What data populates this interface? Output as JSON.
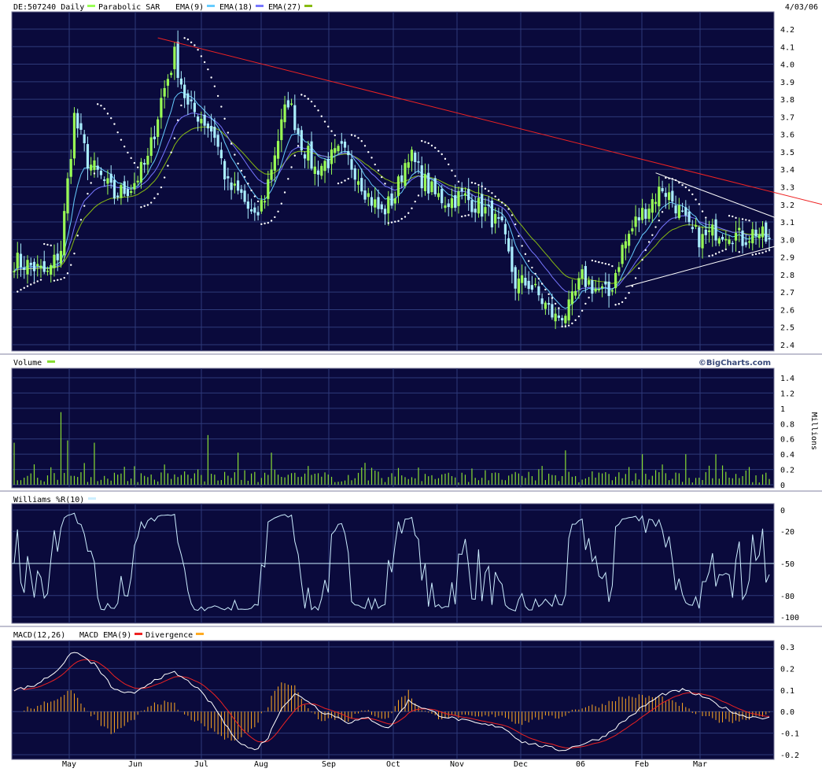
{
  "header": {
    "symbol": "DE:507240",
    "period": "Daily",
    "date": "4/03/06",
    "legend": [
      {
        "label": "Parabolic SAR",
        "color": "#ffffff"
      },
      {
        "label": "EMA(9)",
        "color": "#66ccff"
      },
      {
        "label": "EMA(18)",
        "color": "#7777ff"
      },
      {
        "label": "EMA(27)",
        "color": "#88bb11"
      }
    ],
    "watermark": "©BigCharts.com"
  },
  "colors": {
    "panel_bg": "#0a0a3c",
    "grid": "#2e3a7a",
    "up_bar": "#99ff55",
    "down_bar": "#aaeeff",
    "sar": "#ffffff",
    "ema9": "#66ccff",
    "ema18": "#7777ff",
    "ema27": "#88bb11",
    "trendline_red": "#ee2222",
    "triangle": "#ffffff",
    "volume": "#88dd33",
    "williams": "#cceeff",
    "macd": "#ffffff",
    "macd_signal": "#ee2222",
    "divergence": "#ffaa22"
  },
  "x_axis": {
    "labels": [
      "May",
      "Jun",
      "Jul",
      "Aug",
      "Sep",
      "Oct",
      "Nov",
      "Dec",
      "06",
      "Feb",
      "Mar"
    ]
  },
  "chart_data": [
    {
      "type": "candlestick",
      "title": "DE:507240 Daily",
      "ylim": [
        2.4,
        4.2
      ],
      "yticks": [
        "4.2",
        "4.1",
        "4.0",
        "3.9",
        "3.8",
        "3.7",
        "3.6",
        "3.5",
        "3.4",
        "3.3",
        "3.2",
        "3.1",
        "3.0",
        "2.9",
        "2.8",
        "2.7",
        "2.6",
        "2.5",
        "2.4"
      ],
      "grid": true,
      "anchor_closes": [
        [
          0,
          2.88
        ],
        [
          5,
          2.85
        ],
        [
          10,
          2.8
        ],
        [
          14,
          2.95
        ],
        [
          18,
          3.7
        ],
        [
          22,
          3.45
        ],
        [
          26,
          3.35
        ],
        [
          30,
          3.25
        ],
        [
          35,
          3.3
        ],
        [
          40,
          3.45
        ],
        [
          44,
          3.8
        ],
        [
          48,
          4.05
        ],
        [
          52,
          3.75
        ],
        [
          56,
          3.7
        ],
        [
          60,
          3.6
        ],
        [
          64,
          3.3
        ],
        [
          68,
          3.25
        ],
        [
          72,
          3.1
        ],
        [
          75,
          3.25
        ],
        [
          78,
          3.5
        ],
        [
          82,
          3.8
        ],
        [
          86,
          3.55
        ],
        [
          90,
          3.4
        ],
        [
          94,
          3.45
        ],
        [
          98,
          3.5
        ],
        [
          102,
          3.4
        ],
        [
          106,
          3.25
        ],
        [
          110,
          3.15
        ],
        [
          114,
          3.25
        ],
        [
          118,
          3.5
        ],
        [
          122,
          3.35
        ],
        [
          126,
          3.25
        ],
        [
          130,
          3.22
        ],
        [
          134,
          3.25
        ],
        [
          138,
          3.2
        ],
        [
          142,
          3.15
        ],
        [
          146,
          3.05
        ],
        [
          150,
          2.75
        ],
        [
          154,
          2.75
        ],
        [
          158,
          2.65
        ],
        [
          162,
          2.55
        ],
        [
          166,
          2.6
        ],
        [
          170,
          2.78
        ],
        [
          174,
          2.72
        ],
        [
          178,
          2.68
        ],
        [
          182,
          2.95
        ],
        [
          186,
          3.1
        ],
        [
          190,
          3.2
        ],
        [
          194,
          3.3
        ],
        [
          198,
          3.2
        ],
        [
          202,
          3.05
        ],
        [
          206,
          3.0
        ],
        [
          210,
          3.05
        ],
        [
          214,
          3.05
        ],
        [
          218,
          3.0
        ],
        [
          222,
          3.05
        ],
        [
          226,
          2.98
        ]
      ],
      "parabolic_sar_points": 227,
      "trendlines": [
        {
          "name": "resistance",
          "from": [
            "Jun",
            4.15
          ],
          "to": [
            "right edge",
            3.2
          ]
        },
        {
          "name": "triangle upper",
          "from": [
            "Feb",
            3.38
          ],
          "to": [
            "apex",
            3.03
          ]
        },
        {
          "name": "triangle lower",
          "from": [
            "Feb",
            2.73
          ],
          "to": [
            "apex",
            3.03
          ]
        }
      ]
    },
    {
      "type": "bar",
      "title": "Volume",
      "ylabel": "Millions",
      "ylim": [
        0,
        1.4
      ],
      "yticks": [
        "1.4",
        "1.2",
        "1",
        "0.8",
        "0.6",
        "0.4",
        "0.2",
        "0"
      ],
      "spikes": [
        [
          0,
          0.55
        ],
        [
          14,
          0.95
        ],
        [
          16,
          0.58
        ],
        [
          24,
          0.55
        ],
        [
          58,
          0.65
        ],
        [
          67,
          0.42
        ],
        [
          77,
          0.42
        ],
        [
          165,
          0.45
        ],
        [
          188,
          0.4
        ],
        [
          201,
          0.4
        ],
        [
          210,
          0.4
        ]
      ]
    },
    {
      "type": "line",
      "title": "Williams %R(10)",
      "ylim": [
        -100,
        0
      ],
      "yticks": [
        "0",
        "-20",
        "-50",
        "-80",
        "-100"
      ],
      "reference_line": -50
    },
    {
      "type": "line",
      "title": "MACD(12,26)",
      "ylim": [
        -0.2,
        0.3
      ],
      "yticks": [
        "0.3",
        "0.2",
        "0.1",
        "0.0",
        "-0.1",
        "-0.2"
      ],
      "series": [
        {
          "name": "MACD(12,26)",
          "color": "#ffffff"
        },
        {
          "name": "MACD EMA(9)",
          "color": "#ee2222"
        },
        {
          "name": "Divergence",
          "color": "#ffaa22",
          "kind": "bar"
        }
      ],
      "anchor_macd": [
        [
          0,
          0.1
        ],
        [
          6,
          0.12
        ],
        [
          12,
          0.18
        ],
        [
          18,
          0.28
        ],
        [
          24,
          0.22
        ],
        [
          30,
          0.1
        ],
        [
          36,
          0.08
        ],
        [
          42,
          0.15
        ],
        [
          48,
          0.18
        ],
        [
          54,
          0.12
        ],
        [
          60,
          0.02
        ],
        [
          64,
          -0.08
        ],
        [
          68,
          -0.15
        ],
        [
          72,
          -0.18
        ],
        [
          76,
          -0.12
        ],
        [
          80,
          0.02
        ],
        [
          84,
          0.08
        ],
        [
          88,
          0.05
        ],
        [
          92,
          0.0
        ],
        [
          96,
          -0.02
        ],
        [
          100,
          -0.05
        ],
        [
          106,
          -0.03
        ],
        [
          112,
          -0.08
        ],
        [
          118,
          0.05
        ],
        [
          122,
          0.02
        ],
        [
          128,
          -0.02
        ],
        [
          134,
          -0.04
        ],
        [
          140,
          -0.06
        ],
        [
          146,
          -0.07
        ],
        [
          152,
          -0.14
        ],
        [
          158,
          -0.16
        ],
        [
          164,
          -0.18
        ],
        [
          170,
          -0.15
        ],
        [
          176,
          -0.12
        ],
        [
          182,
          -0.05
        ],
        [
          188,
          0.02
        ],
        [
          194,
          0.08
        ],
        [
          200,
          0.1
        ],
        [
          206,
          0.07
        ],
        [
          212,
          0.02
        ],
        [
          218,
          -0.02
        ],
        [
          226,
          -0.03
        ]
      ]
    }
  ]
}
